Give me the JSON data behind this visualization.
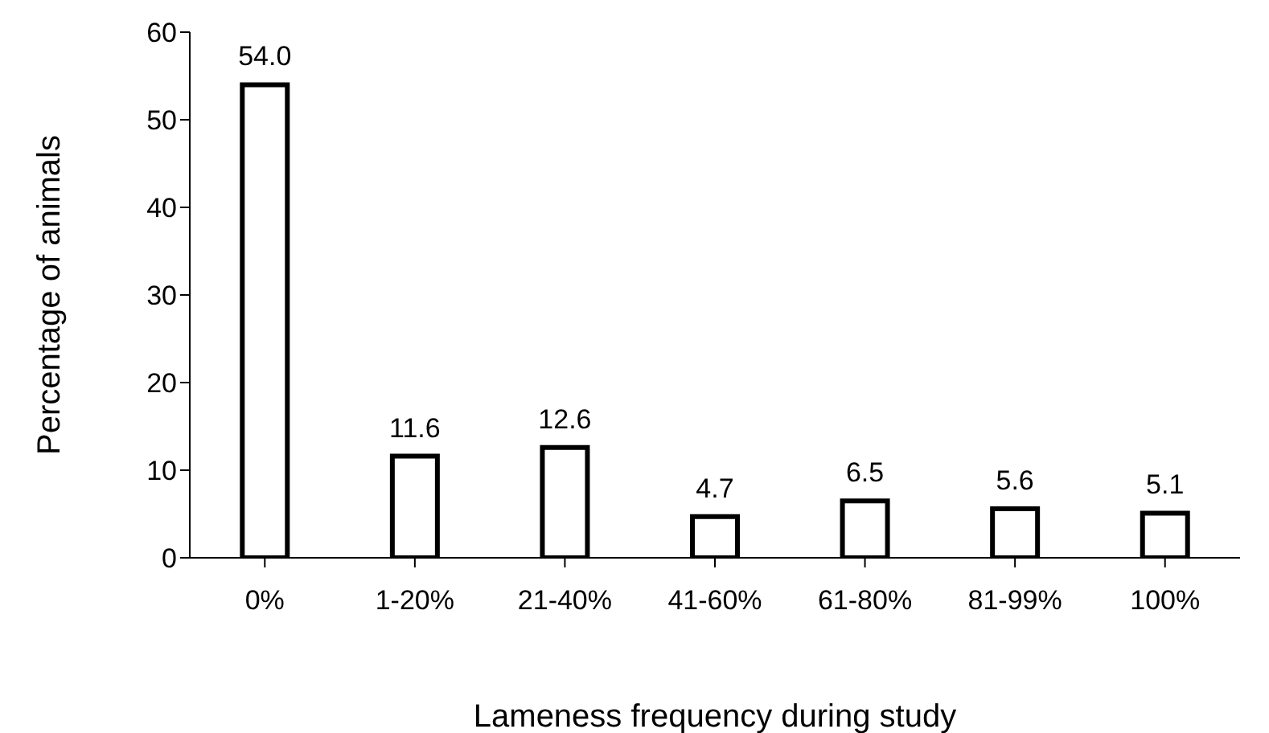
{
  "chart_data": {
    "type": "bar",
    "xlabel": "Lameness frequency during study",
    "ylabel": "Percentage of animals",
    "categories": [
      "0%",
      "1-20%",
      "21-40%",
      "41-60%",
      "61-80%",
      "81-99%",
      "100%"
    ],
    "values": [
      54.0,
      11.6,
      12.6,
      4.7,
      6.5,
      5.6,
      5.1
    ],
    "value_labels": [
      "54.0",
      "11.6",
      "12.6",
      "4.7",
      "6.5",
      "5.6",
      "5.1"
    ],
    "color": "#ffffff",
    "ylim": [
      0,
      60
    ],
    "yticks": [
      0,
      10,
      20,
      30,
      40,
      50,
      60
    ],
    "grid": false,
    "legend": false
  }
}
